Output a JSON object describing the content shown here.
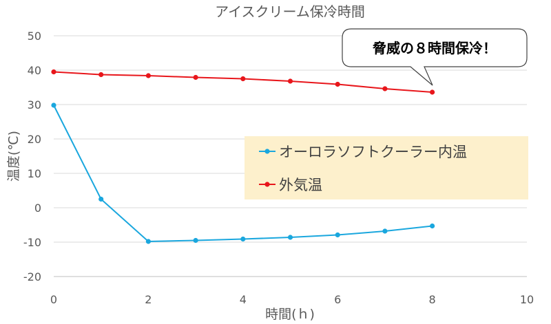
{
  "chart_data": {
    "type": "line",
    "title": "アイスクリーム保冷時間",
    "xlabel": "時間(ｈ)",
    "ylabel": "温度(℃)",
    "xlim": [
      0,
      10
    ],
    "ylim": [
      -20,
      50
    ],
    "xticks": [
      0,
      2,
      4,
      6,
      8,
      10
    ],
    "yticks": [
      -20,
      -10,
      0,
      10,
      20,
      30,
      40,
      50
    ],
    "grid": "horizontal",
    "legend_position": "center-right",
    "x": [
      0,
      1,
      2,
      3,
      4,
      5,
      6,
      7,
      8
    ],
    "series": [
      {
        "name": "オーロラソフトクーラー内温",
        "color": "#1AA7DE",
        "values": [
          29.8,
          2.5,
          -9.8,
          -9.5,
          -9.1,
          -8.6,
          -7.9,
          -6.8,
          -5.3
        ]
      },
      {
        "name": "外気温",
        "color": "#E8161B",
        "values": [
          39.5,
          38.7,
          38.4,
          37.9,
          37.5,
          36.8,
          35.9,
          34.6,
          33.6
        ]
      }
    ],
    "annotation": {
      "text": "脅威の８時間保冷！",
      "points_to": {
        "series": "外気温",
        "x": 8
      }
    },
    "colors": {
      "text": "#595959",
      "grid": "#d9d9d9",
      "legend_background": "#FDF0CC"
    }
  }
}
